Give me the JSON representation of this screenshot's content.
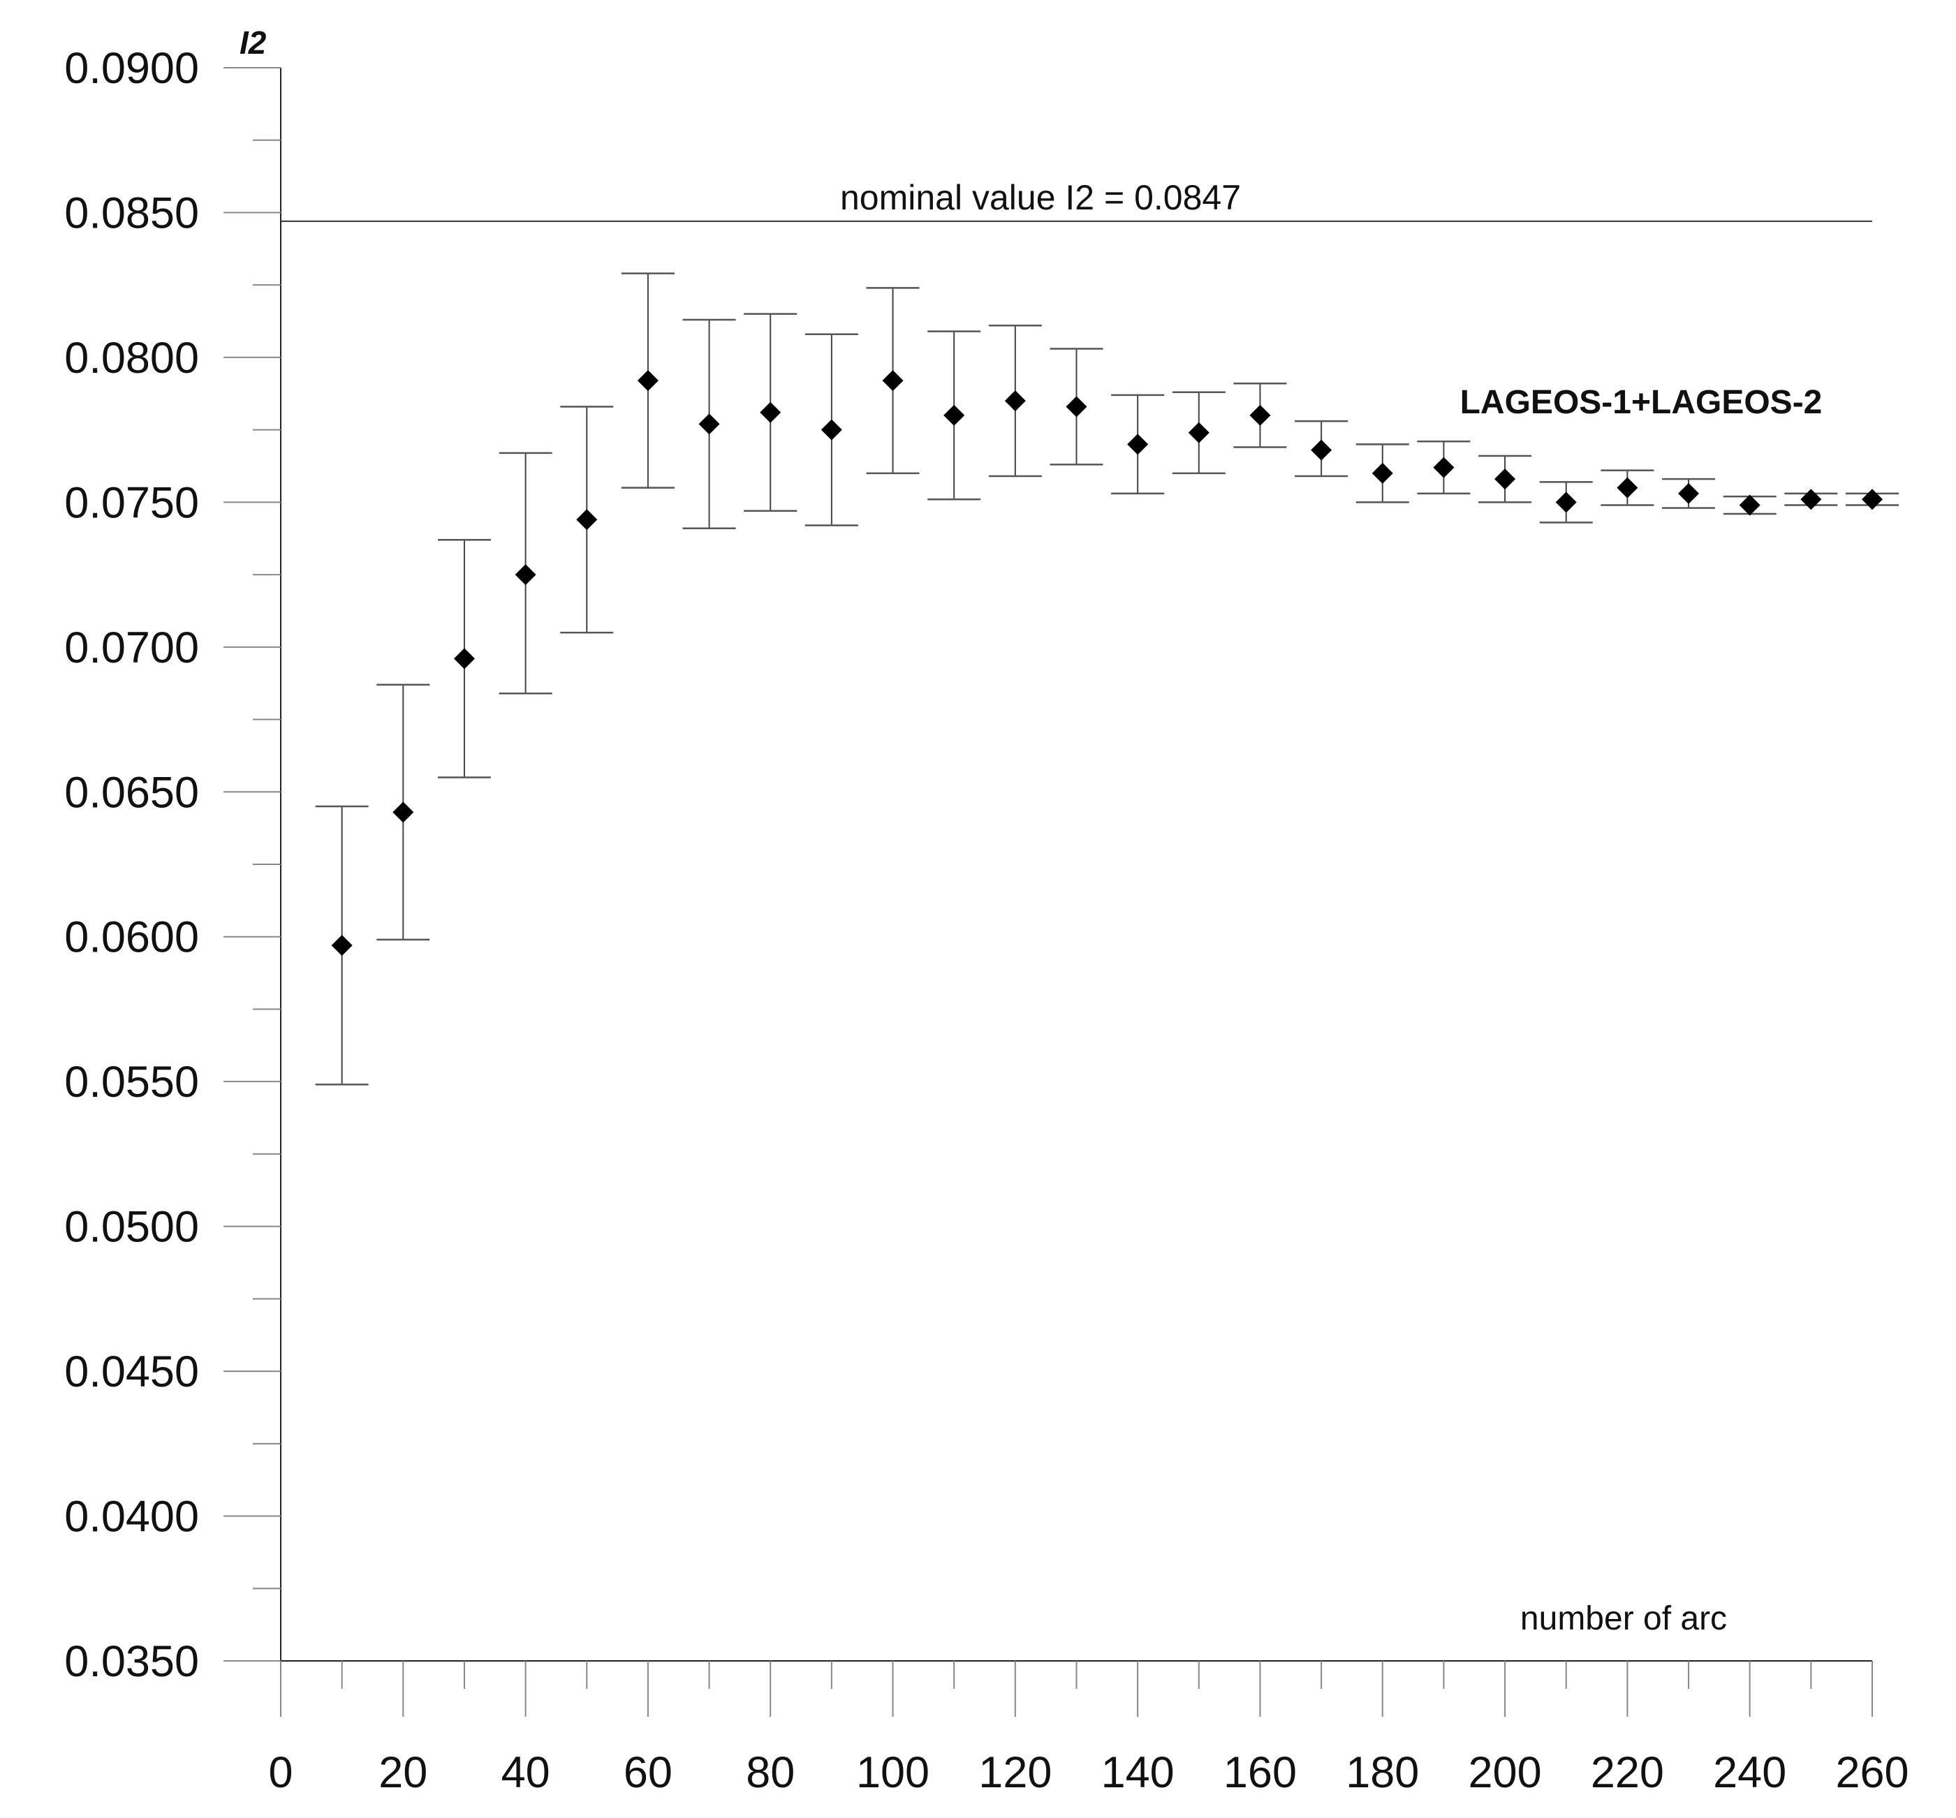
{
  "chart_data": {
    "type": "scatter",
    "ylabel": "I2",
    "xlabel": "number of arc",
    "xlim": [
      0,
      260
    ],
    "ylim": [
      0.035,
      0.09
    ],
    "x_ticks": [
      "0",
      "20",
      "40",
      "60",
      "80",
      "100",
      "120",
      "140",
      "160",
      "180",
      "200",
      "220",
      "240",
      "260"
    ],
    "y_ticks": [
      "0.0900",
      "0.0850",
      "0.0800",
      "0.0750",
      "0.0700",
      "0.0650",
      "0.0600",
      "0.0550",
      "0.0500",
      "0.0450",
      "0.0400",
      "0.0350"
    ],
    "y_tick_values": [
      0.09,
      0.085,
      0.08,
      0.075,
      0.07,
      0.065,
      0.06,
      0.055,
      0.05,
      0.045,
      0.04,
      0.035
    ],
    "x_tick_values": [
      0,
      20,
      40,
      60,
      80,
      100,
      120,
      140,
      160,
      180,
      200,
      220,
      240,
      260
    ],
    "reference_line": {
      "y": 0.0847,
      "label": "nominal value I2 = 0.0847"
    },
    "series": [
      {
        "name": "LAGEOS-1+LAGEOS-2",
        "marker": "diamond",
        "color": "#000000",
        "points": [
          {
            "x": 10,
            "y": 0.0597,
            "low": 0.0549,
            "high": 0.0645
          },
          {
            "x": 20,
            "y": 0.0643,
            "low": 0.0599,
            "high": 0.0687
          },
          {
            "x": 30,
            "y": 0.0696,
            "low": 0.0655,
            "high": 0.0737
          },
          {
            "x": 40,
            "y": 0.0725,
            "low": 0.0684,
            "high": 0.0767
          },
          {
            "x": 50,
            "y": 0.0744,
            "low": 0.0705,
            "high": 0.0783
          },
          {
            "x": 60,
            "y": 0.0792,
            "low": 0.0755,
            "high": 0.0829
          },
          {
            "x": 70,
            "y": 0.0777,
            "low": 0.0741,
            "high": 0.0813
          },
          {
            "x": 80,
            "y": 0.0781,
            "low": 0.0747,
            "high": 0.0815
          },
          {
            "x": 90,
            "y": 0.0775,
            "low": 0.0742,
            "high": 0.0808
          },
          {
            "x": 100,
            "y": 0.0792,
            "low": 0.076,
            "high": 0.0824
          },
          {
            "x": 110,
            "y": 0.078,
            "low": 0.0751,
            "high": 0.0809
          },
          {
            "x": 120,
            "y": 0.0785,
            "low": 0.0759,
            "high": 0.0811
          },
          {
            "x": 130,
            "y": 0.0783,
            "low": 0.0763,
            "high": 0.0803
          },
          {
            "x": 140,
            "y": 0.077,
            "low": 0.0753,
            "high": 0.0787
          },
          {
            "x": 150,
            "y": 0.0774,
            "low": 0.076,
            "high": 0.0788
          },
          {
            "x": 160,
            "y": 0.078,
            "low": 0.0769,
            "high": 0.0791
          },
          {
            "x": 170,
            "y": 0.0768,
            "low": 0.0759,
            "high": 0.0778
          },
          {
            "x": 180,
            "y": 0.076,
            "low": 0.075,
            "high": 0.077
          },
          {
            "x": 190,
            "y": 0.0762,
            "low": 0.0753,
            "high": 0.0771
          },
          {
            "x": 200,
            "y": 0.0758,
            "low": 0.075,
            "high": 0.0766
          },
          {
            "x": 210,
            "y": 0.075,
            "low": 0.0743,
            "high": 0.0757
          },
          {
            "x": 220,
            "y": 0.0755,
            "low": 0.0749,
            "high": 0.0761
          },
          {
            "x": 230,
            "y": 0.0753,
            "low": 0.0748,
            "high": 0.0758
          },
          {
            "x": 240,
            "y": 0.0749,
            "low": 0.0746,
            "high": 0.0752
          },
          {
            "x": 250,
            "y": 0.0751,
            "low": 0.0749,
            "high": 0.0753
          },
          {
            "x": 260,
            "y": 0.0751,
            "low": 0.0749,
            "high": 0.0753
          }
        ]
      }
    ],
    "grid": false
  }
}
